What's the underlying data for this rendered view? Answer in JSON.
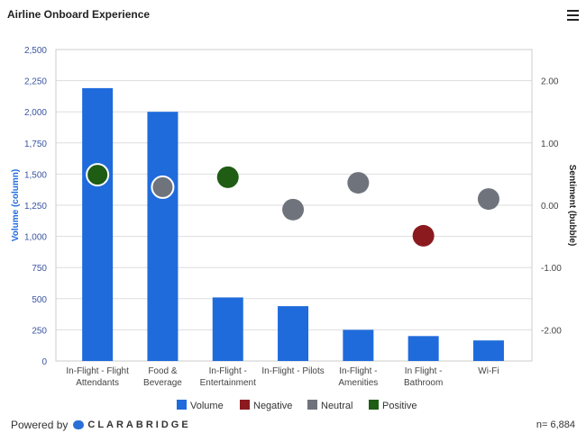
{
  "title": "Airline Onboard Experience",
  "footer": {
    "powered_by": "Powered by",
    "brand": "CLARABRIDGE",
    "n": "n= 6,884"
  },
  "chart_data": {
    "type": "bar",
    "categories": [
      "In-Flight - Flight Attendants",
      "Food & Beverage",
      "In-Flight - Entertainment",
      "In-Flight - Pilots",
      "In-Flight - Amenities",
      "In Flight - Bathroom",
      "Wi-Fi"
    ],
    "series": [
      {
        "name": "Volume",
        "type": "column",
        "values": [
          2190,
          2000,
          510,
          440,
          250,
          200,
          165
        ],
        "color": "#1f6bdc"
      },
      {
        "name": "Sentiment",
        "type": "bubble",
        "values": [
          0.49,
          0.29,
          0.45,
          -0.07,
          0.36,
          -0.49,
          0.1
        ],
        "sentiment_class": [
          "Positive",
          "Neutral",
          "Positive",
          "Neutral",
          "Neutral",
          "Negative",
          "Neutral"
        ]
      }
    ],
    "ylabel": "Volume (column)",
    "ylim": [
      0,
      2500
    ],
    "yticks": [
      "0",
      "250",
      "500",
      "750",
      "1,000",
      "1,250",
      "1,500",
      "1,750",
      "2,000",
      "2,250",
      "2,500"
    ],
    "y2label": "Sentiment (bubble)",
    "y2lim": [
      -2.5,
      2.5
    ],
    "y2ticks": [
      "-2.00",
      "-1.00",
      "0.00",
      "1.00",
      "2.00"
    ],
    "grid": true,
    "legend_position": "bottom",
    "legend": [
      {
        "name": "Volume",
        "color": "#1f6bdc"
      },
      {
        "name": "Negative",
        "color": "#8b1a1f"
      },
      {
        "name": "Neutral",
        "color": "#6f737b"
      },
      {
        "name": "Positive",
        "color": "#1f5c14"
      }
    ]
  }
}
